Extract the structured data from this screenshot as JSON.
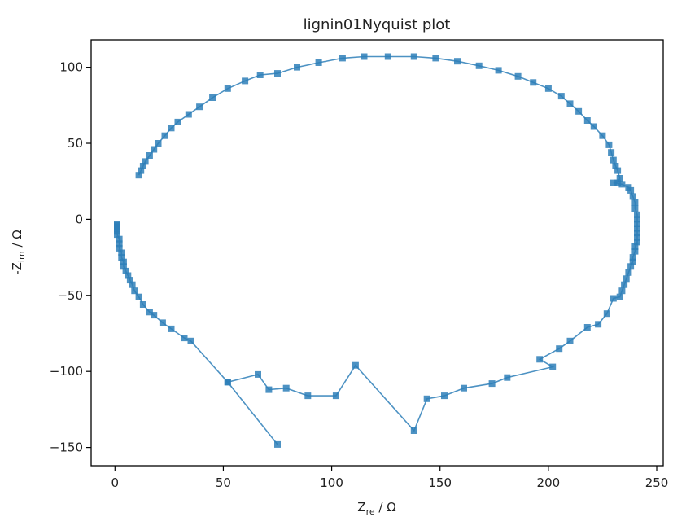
{
  "chart_data": {
    "type": "scatter",
    "title": "lignin01Nyquist plot",
    "xlabel": {
      "main": "Z",
      "sub": "re",
      "unit": " / Ω"
    },
    "ylabel": {
      "main": "-Z",
      "sub": "im",
      "unit": " / Ω"
    },
    "xlim": [
      -11,
      253
    ],
    "ylim": [
      -162,
      118
    ],
    "xticks": [
      0,
      50,
      100,
      150,
      200,
      250
    ],
    "yticks": [
      -150,
      -100,
      -50,
      0,
      50,
      100
    ],
    "grid": false,
    "series": [
      {
        "color": "#2e7fb8",
        "marker": "square",
        "line": true,
        "points": [
          [
            11,
            29
          ],
          [
            12,
            32
          ],
          [
            13,
            35
          ],
          [
            14,
            38
          ],
          [
            16,
            42
          ],
          [
            18,
            46
          ],
          [
            20,
            50
          ],
          [
            23,
            55
          ],
          [
            26,
            60
          ],
          [
            29,
            64
          ],
          [
            34,
            69
          ],
          [
            39,
            74
          ],
          [
            45,
            80
          ],
          [
            52,
            86
          ],
          [
            60,
            91
          ],
          [
            67,
            95
          ],
          [
            75,
            96
          ],
          [
            84,
            100
          ],
          [
            94,
            103
          ],
          [
            105,
            106
          ],
          [
            115,
            107
          ],
          [
            126,
            107
          ],
          [
            138,
            107
          ],
          [
            148,
            106
          ],
          [
            158,
            104
          ],
          [
            168,
            101
          ],
          [
            177,
            98
          ],
          [
            186,
            94
          ],
          [
            193,
            90
          ],
          [
            200,
            86
          ],
          [
            206,
            81
          ],
          [
            210,
            76
          ],
          [
            214,
            71
          ],
          [
            218,
            65
          ],
          [
            221,
            61
          ],
          [
            225,
            55
          ],
          [
            228,
            49
          ],
          [
            229,
            44
          ],
          [
            230,
            39
          ],
          [
            231,
            35
          ],
          [
            232,
            32
          ],
          [
            233,
            27
          ],
          [
            232,
            24
          ],
          [
            230,
            24
          ],
          [
            234,
            23
          ],
          [
            237,
            21
          ],
          [
            238,
            19
          ],
          [
            239,
            15
          ],
          [
            240,
            11
          ],
          [
            240,
            7
          ],
          [
            241,
            3
          ],
          [
            241,
            0
          ],
          [
            241,
            -3
          ],
          [
            241,
            -6
          ],
          [
            241,
            -9
          ],
          [
            241,
            -12
          ],
          [
            241,
            -15
          ],
          [
            240,
            -18
          ],
          [
            240,
            -21
          ],
          [
            239,
            -25
          ],
          [
            239,
            -28
          ],
          [
            238,
            -31
          ],
          [
            237,
            -35
          ],
          [
            236,
            -39
          ],
          [
            235,
            -43
          ],
          [
            234,
            -47
          ],
          [
            233,
            -51
          ],
          [
            230,
            -52
          ],
          [
            227,
            -62
          ],
          [
            223,
            -69
          ],
          [
            218,
            -71
          ],
          [
            210,
            -80
          ],
          [
            205,
            -85
          ],
          [
            196,
            -92
          ],
          [
            202,
            -97
          ],
          [
            181,
            -104
          ],
          [
            174,
            -108
          ],
          [
            161,
            -111
          ],
          [
            152,
            -116
          ],
          [
            144,
            -118
          ],
          [
            138,
            -139
          ],
          [
            111,
            -96
          ],
          [
            102,
            -116
          ],
          [
            89,
            -116
          ],
          [
            79,
            -111
          ],
          [
            71,
            -112
          ],
          [
            66,
            -102
          ],
          [
            52,
            -107
          ],
          [
            75,
            -148
          ],
          [
            52,
            -107
          ],
          [
            35,
            -80
          ],
          [
            32,
            -78
          ],
          [
            26,
            -72
          ],
          [
            22,
            -68
          ],
          [
            18,
            -63
          ],
          [
            16,
            -61
          ],
          [
            13,
            -56
          ],
          [
            11,
            -51
          ],
          [
            9,
            -47
          ],
          [
            8,
            -43
          ],
          [
            7,
            -40
          ],
          [
            6,
            -37
          ],
          [
            5,
            -34
          ],
          [
            4,
            -31
          ],
          [
            4,
            -28
          ],
          [
            3,
            -25
          ],
          [
            3,
            -22
          ],
          [
            2,
            -19
          ],
          [
            2,
            -16
          ],
          [
            2,
            -13
          ],
          [
            1,
            -10
          ],
          [
            1,
            -8
          ],
          [
            1,
            -6
          ],
          [
            1,
            -4
          ],
          [
            1,
            -3
          ],
          [
            1,
            -5
          ]
        ]
      }
    ]
  }
}
